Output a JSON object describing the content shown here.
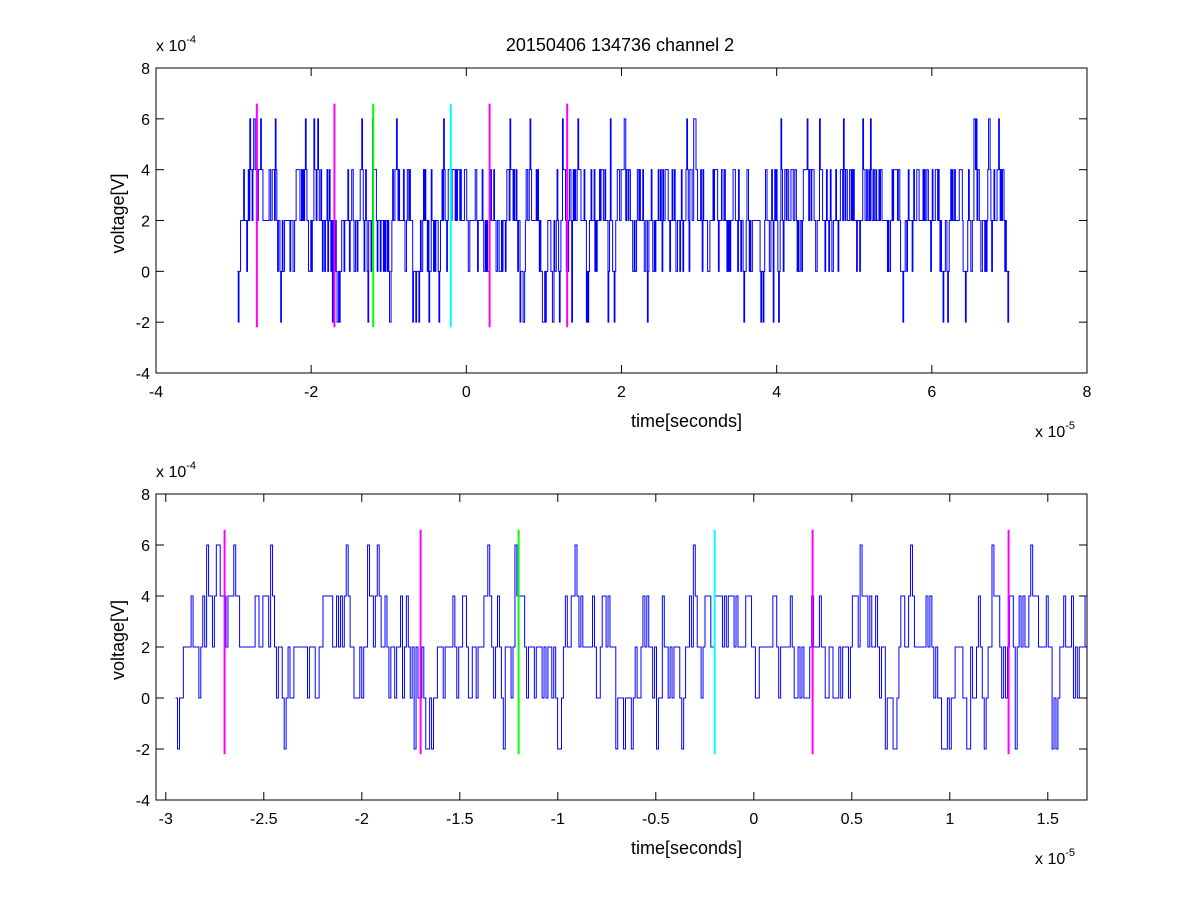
{
  "title": "20150406 134736 channel 2",
  "colors": {
    "signal": "#0000ff",
    "magenta": "#ff00ff",
    "green": "#00ff00",
    "cyan": "#00ffff"
  },
  "chart_data": [
    {
      "type": "line",
      "xlabel": "time[seconds]",
      "ylabel": "voltage[V]",
      "x_multiplier": "x 10",
      "x_exponent": "-5",
      "y_multiplier": "x 10",
      "y_exponent": "-4",
      "xlim": [
        -4,
        8
      ],
      "ylim": [
        -4,
        8
      ],
      "x_ticks": [
        -4,
        -2,
        0,
        2,
        4,
        6,
        8
      ],
      "x_tick_labels": [
        "-4",
        "-2",
        "0",
        "2",
        "4",
        "6",
        "8"
      ],
      "y_ticks": [
        -4,
        -2,
        0,
        2,
        4,
        6,
        8
      ],
      "y_tick_labels": [
        "-4",
        "-2",
        "0",
        "2",
        "4",
        "6",
        "8"
      ],
      "grid": false,
      "series": [
        {
          "kind": "step-noise",
          "color": "signal",
          "x_start": -2.95,
          "x_end": 7.0,
          "levels": [
            -2,
            0,
            2,
            4,
            6
          ],
          "samples": 1000
        }
      ],
      "markers": [
        {
          "x": -2.7,
          "y_min": -2.2,
          "y_max": 6.6,
          "color": "magenta"
        },
        {
          "x": -1.7,
          "y_min": -2.2,
          "y_max": 6.6,
          "color": "magenta"
        },
        {
          "x": -1.2,
          "y_min": -2.2,
          "y_max": 6.6,
          "color": "green"
        },
        {
          "x": -0.2,
          "y_min": -2.2,
          "y_max": 6.6,
          "color": "cyan"
        },
        {
          "x": 0.3,
          "y_min": -2.2,
          "y_max": 6.6,
          "color": "magenta"
        },
        {
          "x": 1.3,
          "y_min": -2.2,
          "y_max": 6.6,
          "color": "magenta"
        }
      ]
    },
    {
      "type": "line",
      "xlabel": "time[seconds]",
      "ylabel": "voltage[V]",
      "x_multiplier": "x 10",
      "x_exponent": "-5",
      "y_multiplier": "x 10",
      "y_exponent": "-4",
      "xlim": [
        -3.05,
        1.7
      ],
      "ylim": [
        -4,
        8
      ],
      "x_ticks": [
        -3,
        -2.5,
        -2,
        -1.5,
        -1,
        -0.5,
        0,
        0.5,
        1,
        1.5
      ],
      "x_tick_labels": [
        "-3",
        "-2.5",
        "-2",
        "-1.5",
        "-1",
        "-0.5",
        "0",
        "0.5",
        "1",
        "1.5"
      ],
      "y_ticks": [
        -4,
        -2,
        0,
        2,
        4,
        6,
        8
      ],
      "y_tick_labels": [
        "-4",
        "-2",
        "0",
        "2",
        "4",
        "6",
        "8"
      ],
      "grid": false,
      "series": [
        {
          "kind": "step-noise",
          "color": "signal",
          "x_start": -2.95,
          "x_end": 1.7,
          "levels": [
            -2,
            0,
            2,
            4,
            6
          ],
          "samples": 470
        }
      ],
      "markers": [
        {
          "x": -2.7,
          "y_min": -2.2,
          "y_max": 6.6,
          "color": "magenta"
        },
        {
          "x": -1.7,
          "y_min": -2.2,
          "y_max": 6.6,
          "color": "magenta"
        },
        {
          "x": -1.2,
          "y_min": -2.2,
          "y_max": 6.6,
          "color": "green"
        },
        {
          "x": -0.2,
          "y_min": -2.2,
          "y_max": 6.6,
          "color": "cyan"
        },
        {
          "x": 0.3,
          "y_min": -2.2,
          "y_max": 6.6,
          "color": "magenta"
        },
        {
          "x": 1.3,
          "y_min": -2.2,
          "y_max": 6.6,
          "color": "magenta"
        }
      ]
    }
  ]
}
